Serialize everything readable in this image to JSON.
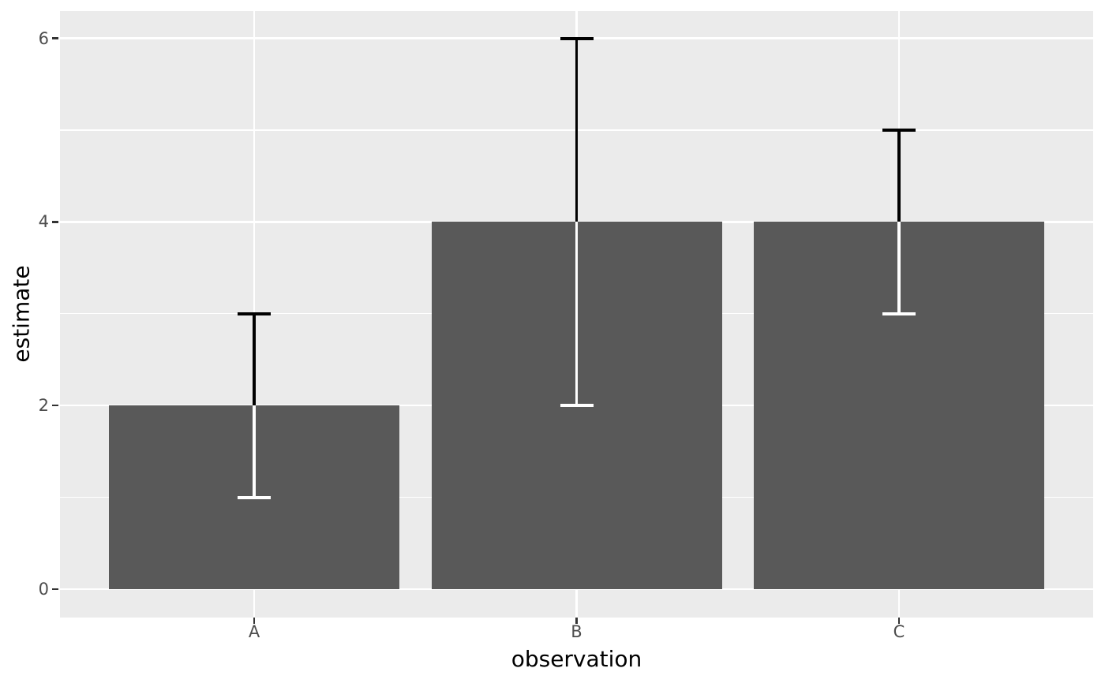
{
  "figure": {
    "type": "ggplot-style bar chart with error bars"
  },
  "chart_data": {
    "type": "bar",
    "title": "",
    "xlabel": "observation",
    "ylabel": "estimate",
    "categories": [
      "A",
      "B",
      "C"
    ],
    "values": [
      2,
      4,
      4
    ],
    "error_bars": [
      {
        "low": 1,
        "high": 3
      },
      {
        "low": 2,
        "high": 6
      },
      {
        "low": 3,
        "high": 5
      }
    ],
    "y_major_ticks": [
      0,
      2,
      4,
      6
    ],
    "y_tick_labels": [
      "0",
      "2",
      "4",
      "6"
    ],
    "y_minor_gridlines": [
      1,
      3,
      5
    ],
    "ylim": [
      0,
      6
    ],
    "grid": true,
    "legend": false,
    "style": {
      "bar_fill": "#595959",
      "panel_background": "#EBEBEB",
      "gridline_color": "#FFFFFF",
      "figure_background": "#FFFFFF",
      "tick_label_color": "#4D4D4D",
      "axis_title_color": "#000000",
      "tick_mark_color": "#333333",
      "errorbar_color_above_bar": "#000000",
      "errorbar_color_inside_bar": "#FFFFFF"
    }
  }
}
